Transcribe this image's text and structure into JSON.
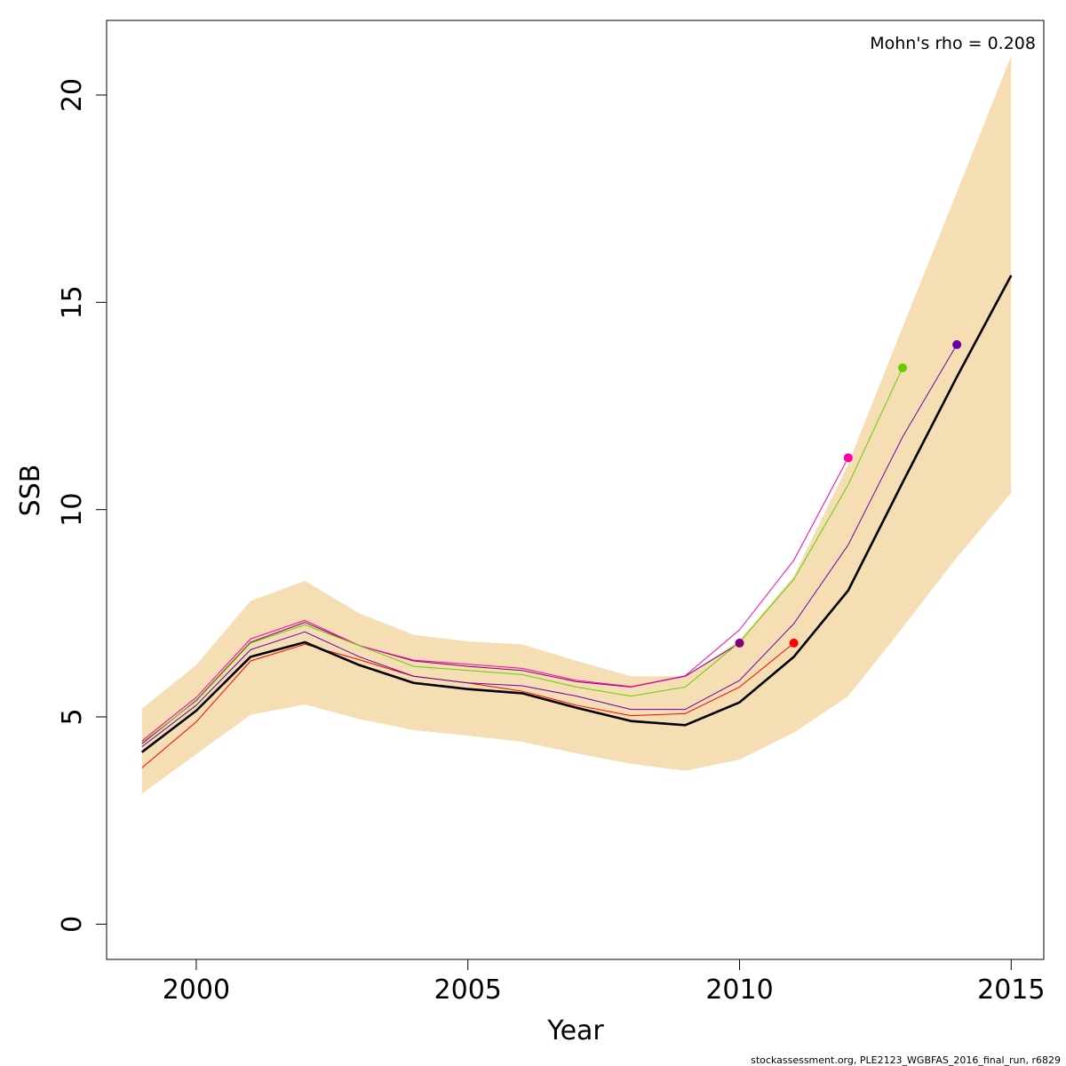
{
  "chart_data": {
    "type": "line",
    "title": "",
    "xlabel": "Year",
    "ylabel": "SSB",
    "xlim": [
      1998.35,
      2015.6
    ],
    "ylim": [
      -0.85,
      21.8
    ],
    "xticks": [
      2000,
      2005,
      2010,
      2015
    ],
    "yticks": [
      0,
      5,
      10,
      15,
      20
    ],
    "grid": false,
    "annotation": "Mohn's rho = 0.208",
    "footer": "stockassessment.org, PLE2123_WGBFAS_2016_final_run, r6829",
    "colors": {
      "band": "#f5deb3",
      "main": "#000000"
    },
    "confidence_band": {
      "x": [
        1999,
        2000,
        2001,
        2002,
        2003,
        2004,
        2005,
        2006,
        2007,
        2008,
        2009,
        2010,
        2011,
        2012,
        2013,
        2014,
        2015
      ],
      "lower": [
        3.15,
        4.1,
        5.05,
        5.3,
        4.95,
        4.68,
        4.55,
        4.4,
        4.12,
        3.87,
        3.7,
        3.97,
        4.62,
        5.5,
        7.15,
        8.85,
        10.4
      ],
      "upper": [
        5.2,
        6.25,
        7.8,
        8.28,
        7.5,
        6.98,
        6.82,
        6.75,
        6.35,
        5.98,
        5.98,
        6.85,
        8.4,
        11.1,
        14.4,
        17.65,
        20.95
      ]
    },
    "series": [
      {
        "color": "#000000",
        "width": 2.6,
        "x": [
          1999,
          2000,
          2001,
          2002,
          2003,
          2004,
          2005,
          2006,
          2007,
          2008,
          2009,
          2010,
          2011,
          2012,
          2013,
          2014,
          2015
        ],
        "values": [
          4.15,
          5.15,
          6.45,
          6.8,
          6.25,
          5.82,
          5.67,
          5.57,
          5.22,
          4.9,
          4.8,
          5.35,
          6.45,
          8.05,
          10.65,
          13.2,
          15.65
        ]
      },
      {
        "color": "#ff0000",
        "width": 1,
        "x": [
          1999,
          2000,
          2001,
          2002,
          2003,
          2004,
          2005,
          2006,
          2007,
          2008,
          2009,
          2010,
          2011
        ],
        "values": [
          3.77,
          4.88,
          6.35,
          6.75,
          6.38,
          5.98,
          5.82,
          5.62,
          5.28,
          5.03,
          5.08,
          5.72,
          6.78
        ],
        "endpoint": true
      },
      {
        "color": "#7f007f",
        "width": 1,
        "x": [
          1999,
          2000,
          2001,
          2002,
          2003,
          2004,
          2005,
          2006,
          2007,
          2008,
          2009,
          2010
        ],
        "values": [
          4.35,
          5.4,
          6.8,
          7.28,
          6.72,
          6.35,
          6.22,
          6.12,
          5.85,
          5.72,
          5.98,
          6.78
        ],
        "endpoint": true
      },
      {
        "color": "#ff00aa",
        "width": 1,
        "x": [
          1999,
          2000,
          2001,
          2002,
          2003,
          2004,
          2005,
          2006,
          2007,
          2008,
          2009,
          2010,
          2011,
          2012
        ],
        "values": [
          4.42,
          5.47,
          6.88,
          7.33,
          6.72,
          6.37,
          6.27,
          6.17,
          5.88,
          5.73,
          5.99,
          7.1,
          8.78,
          11.25
        ],
        "endpoint": true
      },
      {
        "color": "#66cc00",
        "width": 1,
        "x": [
          1999,
          2000,
          2001,
          2002,
          2003,
          2004,
          2005,
          2006,
          2007,
          2008,
          2009,
          2010,
          2011,
          2012,
          2013
        ],
        "values": [
          4.38,
          5.38,
          6.78,
          7.22,
          6.72,
          6.22,
          6.12,
          6.02,
          5.72,
          5.5,
          5.72,
          6.8,
          8.32,
          10.6,
          13.42
        ],
        "endpoint": true
      },
      {
        "color": "#6a00a8",
        "width": 1,
        "x": [
          1999,
          2000,
          2001,
          2002,
          2003,
          2004,
          2005,
          2006,
          2007,
          2008,
          2009,
          2010,
          2011,
          2012,
          2013,
          2014
        ],
        "values": [
          4.28,
          5.28,
          6.62,
          7.05,
          6.45,
          5.98,
          5.82,
          5.75,
          5.5,
          5.18,
          5.18,
          5.88,
          7.25,
          9.15,
          11.75,
          13.98
        ],
        "endpoint": true
      }
    ]
  }
}
